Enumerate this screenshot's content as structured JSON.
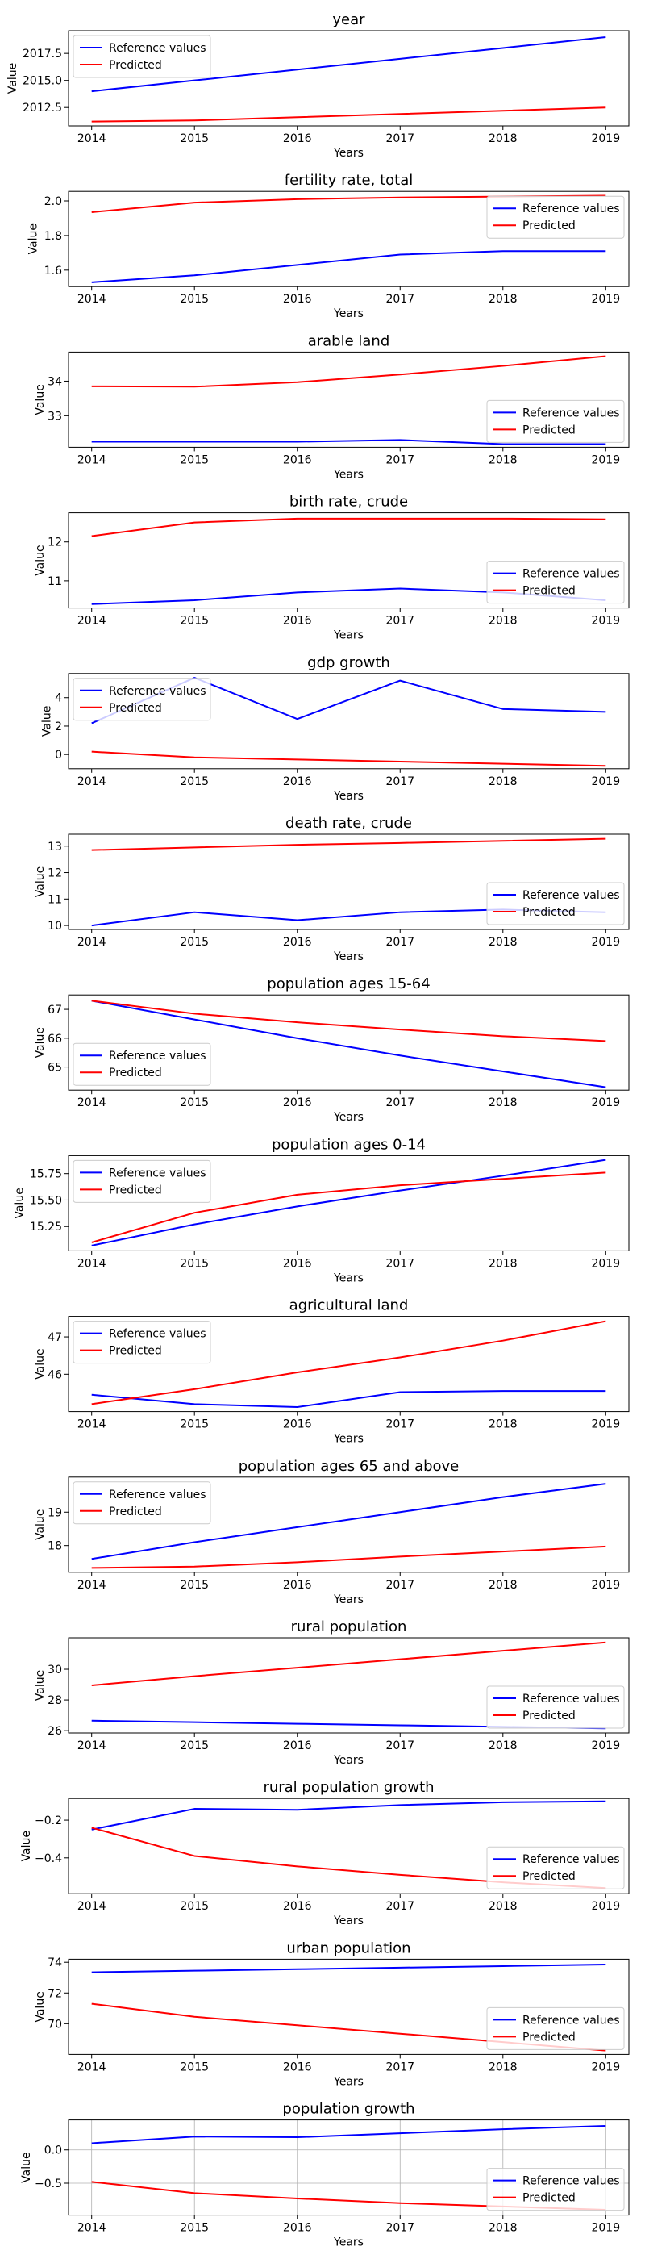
{
  "chart_data": [
    {
      "type": "line",
      "title": "year",
      "xlabel": "Years",
      "ylabel": "Value",
      "x": [
        2014,
        2015,
        2016,
        2017,
        2018,
        2019
      ],
      "xticks": [
        "2014",
        "2015",
        "2016",
        "2017",
        "2018",
        "2019"
      ],
      "yticks": [
        2012.5,
        2015.0,
        2017.5
      ],
      "ytick_labels": [
        "2012.5",
        "2015.0",
        "2017.5"
      ],
      "ylim": [
        2010.8,
        2019.6
      ],
      "legend": "upper-left",
      "grid": false,
      "series": [
        {
          "name": "Reference values",
          "color": "#0000ff",
          "values": [
            2014.0,
            2015.0,
            2016.0,
            2017.0,
            2018.0,
            2019.0
          ]
        },
        {
          "name": "Predicted",
          "color": "#ff0000",
          "values": [
            2011.2,
            2011.3,
            2011.6,
            2011.9,
            2012.2,
            2012.5
          ]
        }
      ]
    },
    {
      "type": "line",
      "title": "fertility rate, total",
      "xlabel": "Years",
      "ylabel": "Value",
      "x": [
        2014,
        2015,
        2016,
        2017,
        2018,
        2019
      ],
      "xticks": [
        "2014",
        "2015",
        "2016",
        "2017",
        "2018",
        "2019"
      ],
      "yticks": [
        1.6,
        1.8,
        2.0
      ],
      "ytick_labels": [
        "1.6",
        "1.8",
        "2.0"
      ],
      "ylim": [
        1.505,
        2.055
      ],
      "legend": "upper-right",
      "grid": false,
      "series": [
        {
          "name": "Reference values",
          "color": "#0000ff",
          "values": [
            1.53,
            1.57,
            1.63,
            1.69,
            1.71,
            1.71
          ]
        },
        {
          "name": "Predicted",
          "color": "#ff0000",
          "values": [
            1.935,
            1.99,
            2.01,
            2.02,
            2.025,
            2.03
          ]
        }
      ]
    },
    {
      "type": "line",
      "title": "arable land",
      "xlabel": "Years",
      "ylabel": "Value",
      "x": [
        2014,
        2015,
        2016,
        2017,
        2018,
        2019
      ],
      "xticks": [
        "2014",
        "2015",
        "2016",
        "2017",
        "2018",
        "2019"
      ],
      "yticks": [
        33,
        34
      ],
      "ytick_labels": [
        "33",
        "34"
      ],
      "ylim": [
        32.09,
        34.84
      ],
      "legend": "lower-right",
      "grid": false,
      "series": [
        {
          "name": "Reference values",
          "color": "#0000ff",
          "values": [
            32.25,
            32.25,
            32.25,
            32.3,
            32.18,
            32.18
          ]
        },
        {
          "name": "Predicted",
          "color": "#ff0000",
          "values": [
            33.85,
            33.84,
            33.97,
            34.19,
            34.44,
            34.72
          ]
        }
      ]
    },
    {
      "type": "line",
      "title": "birth rate, crude",
      "xlabel": "Years",
      "ylabel": "Value",
      "x": [
        2014,
        2015,
        2016,
        2017,
        2018,
        2019
      ],
      "xticks": [
        "2014",
        "2015",
        "2016",
        "2017",
        "2018",
        "2019"
      ],
      "yticks": [
        11,
        12
      ],
      "ytick_labels": [
        "11",
        "12"
      ],
      "ylim": [
        10.3,
        12.75
      ],
      "legend": "lower-right",
      "grid": false,
      "series": [
        {
          "name": "Reference values",
          "color": "#0000ff",
          "values": [
            10.4,
            10.5,
            10.7,
            10.8,
            10.7,
            10.5
          ]
        },
        {
          "name": "Predicted",
          "color": "#ff0000",
          "values": [
            12.15,
            12.5,
            12.6,
            12.6,
            12.6,
            12.58
          ]
        }
      ]
    },
    {
      "type": "line",
      "title": "gdp growth",
      "xlabel": "Years",
      "ylabel": "Value",
      "x": [
        2014,
        2015,
        2016,
        2017,
        2018,
        2019
      ],
      "xticks": [
        "2014",
        "2015",
        "2016",
        "2017",
        "2018",
        "2019"
      ],
      "yticks": [
        0,
        2,
        4
      ],
      "ytick_labels": [
        "0",
        "2",
        "4"
      ],
      "ylim": [
        -1.0,
        5.7
      ],
      "legend": "upper-left",
      "grid": false,
      "series": [
        {
          "name": "Reference values",
          "color": "#0000ff",
          "values": [
            2.2,
            5.4,
            2.5,
            5.2,
            3.2,
            3.0
          ]
        },
        {
          "name": "Predicted",
          "color": "#ff0000",
          "values": [
            0.2,
            -0.2,
            -0.35,
            -0.5,
            -0.65,
            -0.8
          ]
        }
      ]
    },
    {
      "type": "line",
      "title": "death rate, crude",
      "xlabel": "Years",
      "ylabel": "Value",
      "x": [
        2014,
        2015,
        2016,
        2017,
        2018,
        2019
      ],
      "xticks": [
        "2014",
        "2015",
        "2016",
        "2017",
        "2018",
        "2019"
      ],
      "yticks": [
        10,
        11,
        12,
        13
      ],
      "ytick_labels": [
        "10",
        "11",
        "12",
        "13"
      ],
      "ylim": [
        9.85,
        13.45
      ],
      "legend": "lower-right",
      "grid": false,
      "series": [
        {
          "name": "Reference values",
          "color": "#0000ff",
          "values": [
            10.0,
            10.5,
            10.2,
            10.5,
            10.6,
            10.5
          ]
        },
        {
          "name": "Predicted",
          "color": "#ff0000",
          "values": [
            12.85,
            12.95,
            13.05,
            13.12,
            13.2,
            13.28
          ]
        }
      ]
    },
    {
      "type": "line",
      "title": "population ages 15-64",
      "xlabel": "Years",
      "ylabel": "Value",
      "x": [
        2014,
        2015,
        2016,
        2017,
        2018,
        2019
      ],
      "xticks": [
        "2014",
        "2015",
        "2016",
        "2017",
        "2018",
        "2019"
      ],
      "yticks": [
        65,
        66,
        67
      ],
      "ytick_labels": [
        "65",
        "66",
        "67"
      ],
      "ylim": [
        64.2,
        67.5
      ],
      "legend": "lower-left",
      "grid": false,
      "series": [
        {
          "name": "Reference values",
          "color": "#0000ff",
          "values": [
            67.3,
            66.65,
            66.0,
            65.4,
            64.85,
            64.3
          ]
        },
        {
          "name": "Predicted",
          "color": "#ff0000",
          "values": [
            67.3,
            66.85,
            66.55,
            66.3,
            66.07,
            65.9
          ]
        }
      ]
    },
    {
      "type": "line",
      "title": "population ages 0-14",
      "xlabel": "Years",
      "ylabel": "Value",
      "x": [
        2014,
        2015,
        2016,
        2017,
        2018,
        2019
      ],
      "xticks": [
        "2014",
        "2015",
        "2016",
        "2017",
        "2018",
        "2019"
      ],
      "yticks": [
        15.25,
        15.5,
        15.75
      ],
      "ytick_labels": [
        "15.25",
        "15.50",
        "15.75"
      ],
      "ylim": [
        15.02,
        15.92
      ],
      "legend": "upper-left",
      "grid": false,
      "series": [
        {
          "name": "Reference values",
          "color": "#0000ff",
          "values": [
            15.07,
            15.27,
            15.44,
            15.59,
            15.73,
            15.88
          ]
        },
        {
          "name": "Predicted",
          "color": "#ff0000",
          "values": [
            15.1,
            15.38,
            15.55,
            15.64,
            15.7,
            15.76
          ]
        }
      ]
    },
    {
      "type": "line",
      "title": "agricultural land",
      "xlabel": "Years",
      "ylabel": "Value",
      "x": [
        2014,
        2015,
        2016,
        2017,
        2018,
        2019
      ],
      "xticks": [
        "2014",
        "2015",
        "2016",
        "2017",
        "2018",
        "2019"
      ],
      "yticks": [
        46,
        47
      ],
      "ytick_labels": [
        "46",
        "47"
      ],
      "ylim": [
        45.0,
        47.55
      ],
      "legend": "upper-left",
      "grid": false,
      "series": [
        {
          "name": "Reference values",
          "color": "#0000ff",
          "values": [
            45.45,
            45.2,
            45.12,
            45.52,
            45.55,
            45.55
          ]
        },
        {
          "name": "Predicted",
          "color": "#ff0000",
          "values": [
            45.2,
            45.6,
            46.05,
            46.45,
            46.9,
            47.42
          ]
        }
      ]
    },
    {
      "type": "line",
      "title": "population ages 65 and above",
      "xlabel": "Years",
      "ylabel": "Value",
      "x": [
        2014,
        2015,
        2016,
        2017,
        2018,
        2019
      ],
      "xticks": [
        "2014",
        "2015",
        "2016",
        "2017",
        "2018",
        "2019"
      ],
      "yticks": [
        18,
        19
      ],
      "ytick_labels": [
        "18",
        "19"
      ],
      "ylim": [
        17.2,
        20.05
      ],
      "legend": "upper-left",
      "grid": false,
      "series": [
        {
          "name": "Reference values",
          "color": "#0000ff",
          "values": [
            17.6,
            18.1,
            18.55,
            19.0,
            19.45,
            19.85
          ]
        },
        {
          "name": "Predicted",
          "color": "#ff0000",
          "values": [
            17.33,
            17.37,
            17.5,
            17.67,
            17.82,
            17.97
          ]
        }
      ]
    },
    {
      "type": "line",
      "title": "rural population",
      "xlabel": "Years",
      "ylabel": "Value",
      "x": [
        2014,
        2015,
        2016,
        2017,
        2018,
        2019
      ],
      "xticks": [
        "2014",
        "2015",
        "2016",
        "2017",
        "2018",
        "2019"
      ],
      "yticks": [
        26,
        28,
        30
      ],
      "ytick_labels": [
        "26",
        "28",
        "30"
      ],
      "ylim": [
        25.85,
        32.05
      ],
      "legend": "lower-right",
      "grid": false,
      "series": [
        {
          "name": "Reference values",
          "color": "#0000ff",
          "values": [
            26.65,
            26.55,
            26.45,
            26.35,
            26.25,
            26.15
          ]
        },
        {
          "name": "Predicted",
          "color": "#ff0000",
          "values": [
            28.95,
            29.55,
            30.1,
            30.65,
            31.2,
            31.75
          ]
        }
      ]
    },
    {
      "type": "line",
      "title": "rural population growth",
      "xlabel": "Years",
      "ylabel": "Value",
      "x": [
        2014,
        2015,
        2016,
        2017,
        2018,
        2019
      ],
      "xticks": [
        "2014",
        "2015",
        "2016",
        "2017",
        "2018",
        "2019"
      ],
      "yticks": [
        -0.4,
        -0.2
      ],
      "ytick_labels": [
        "−0.4",
        "−0.2"
      ],
      "ylim": [
        -0.59,
        -0.085
      ],
      "legend": "lower-right",
      "grid": false,
      "series": [
        {
          "name": "Reference values",
          "color": "#0000ff",
          "values": [
            -0.25,
            -0.14,
            -0.145,
            -0.12,
            -0.105,
            -0.1
          ]
        },
        {
          "name": "Predicted",
          "color": "#ff0000",
          "values": [
            -0.24,
            -0.39,
            -0.445,
            -0.49,
            -0.53,
            -0.56
          ]
        }
      ]
    },
    {
      "type": "line",
      "title": "urban population",
      "xlabel": "Years",
      "ylabel": "Value",
      "x": [
        2014,
        2015,
        2016,
        2017,
        2018,
        2019
      ],
      "xticks": [
        "2014",
        "2015",
        "2016",
        "2017",
        "2018",
        "2019"
      ],
      "yticks": [
        70,
        72,
        74
      ],
      "ytick_labels": [
        "70",
        "72",
        "74"
      ],
      "ylim": [
        68.0,
        74.2
      ],
      "legend": "lower-right",
      "grid": false,
      "series": [
        {
          "name": "Reference values",
          "color": "#0000ff",
          "values": [
            73.35,
            73.45,
            73.55,
            73.65,
            73.75,
            73.85
          ]
        },
        {
          "name": "Predicted",
          "color": "#ff0000",
          "values": [
            71.3,
            70.45,
            69.9,
            69.35,
            68.8,
            68.25
          ]
        }
      ]
    },
    {
      "type": "line",
      "title": "population growth",
      "xlabel": "Years",
      "ylabel": "Value",
      "x": [
        2014,
        2015,
        2016,
        2017,
        2018,
        2019
      ],
      "xticks": [
        "2014",
        "2015",
        "2016",
        "2017",
        "2018",
        "2019"
      ],
      "yticks": [
        -0.5,
        0.0
      ],
      "ytick_labels": [
        "−0.5",
        "0.0"
      ],
      "ylim": [
        -0.98,
        0.45
      ],
      "legend": "lower-right",
      "grid": true,
      "series": [
        {
          "name": "Reference values",
          "color": "#0000ff",
          "values": [
            0.1,
            0.2,
            0.19,
            0.25,
            0.31,
            0.36
          ]
        },
        {
          "name": "Predicted",
          "color": "#ff0000",
          "values": [
            -0.48,
            -0.65,
            -0.73,
            -0.8,
            -0.85,
            -0.9
          ]
        }
      ]
    }
  ]
}
